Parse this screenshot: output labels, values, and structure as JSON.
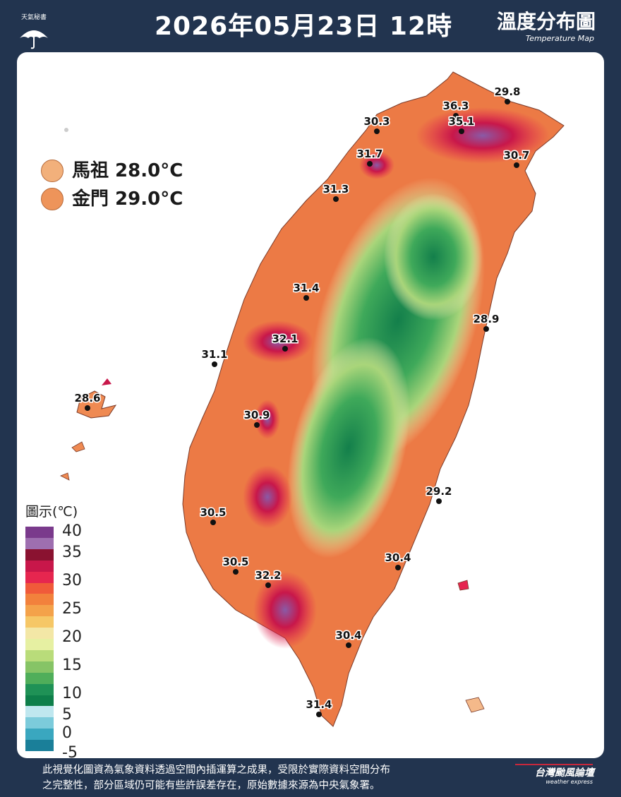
{
  "header": {
    "logo_label": "天氣秘書",
    "title": "2026年05月23日 12時",
    "map_title_zh": "溫度分布圖",
    "map_title_en": "Temperature Map"
  },
  "islands": [
    {
      "label": "馬祖 28.0°C",
      "color": "#f2b07b"
    },
    {
      "label": "金門 29.0°C",
      "color": "#ee945a"
    }
  ],
  "stations": [
    {
      "value": "29.8"
    },
    {
      "value": "36.3"
    },
    {
      "value": "35.1"
    },
    {
      "value": "30.3"
    },
    {
      "value": "31.7"
    },
    {
      "value": "30.7"
    },
    {
      "value": "31.3"
    },
    {
      "value": "31.4"
    },
    {
      "value": "28.9"
    },
    {
      "value": "32.1"
    },
    {
      "value": "31.1"
    },
    {
      "value": "28.6"
    },
    {
      "value": "30.9"
    },
    {
      "value": "29.2"
    },
    {
      "value": "30.5"
    },
    {
      "value": "30.4"
    },
    {
      "value": "30.5"
    },
    {
      "value": "32.2"
    },
    {
      "value": "30.4"
    },
    {
      "value": "31.4"
    }
  ],
  "scale": {
    "title": "圖示(℃)",
    "labels": [
      "40",
      "35",
      "30",
      "25",
      "20",
      "15",
      "10",
      "5",
      "0",
      "-5"
    ],
    "colors": [
      "#7a3a8c",
      "#9e6fb0",
      "#8a1230",
      "#c8174a",
      "#e6264f",
      "#f05a3a",
      "#f2813c",
      "#f4a24a",
      "#f6c766",
      "#f3e7a6",
      "#e6f0a2",
      "#b9dc7a",
      "#86c466",
      "#4fae5a",
      "#1f9256",
      "#0e7f4a",
      "#bfe7ef",
      "#7ccbdb",
      "#3aa7bf",
      "#1a7f99"
    ]
  },
  "footer": {
    "note_line1": "此視覺化圖資為氣象資料透過空間內插運算之成果，受限於實際資料空間分布",
    "note_line2": "之完整性，部分區域仍可能有些許誤差存在，原始數據來源為中央氣象署。",
    "brand": "台灣颱風論壇",
    "brand_en": "weather express"
  }
}
